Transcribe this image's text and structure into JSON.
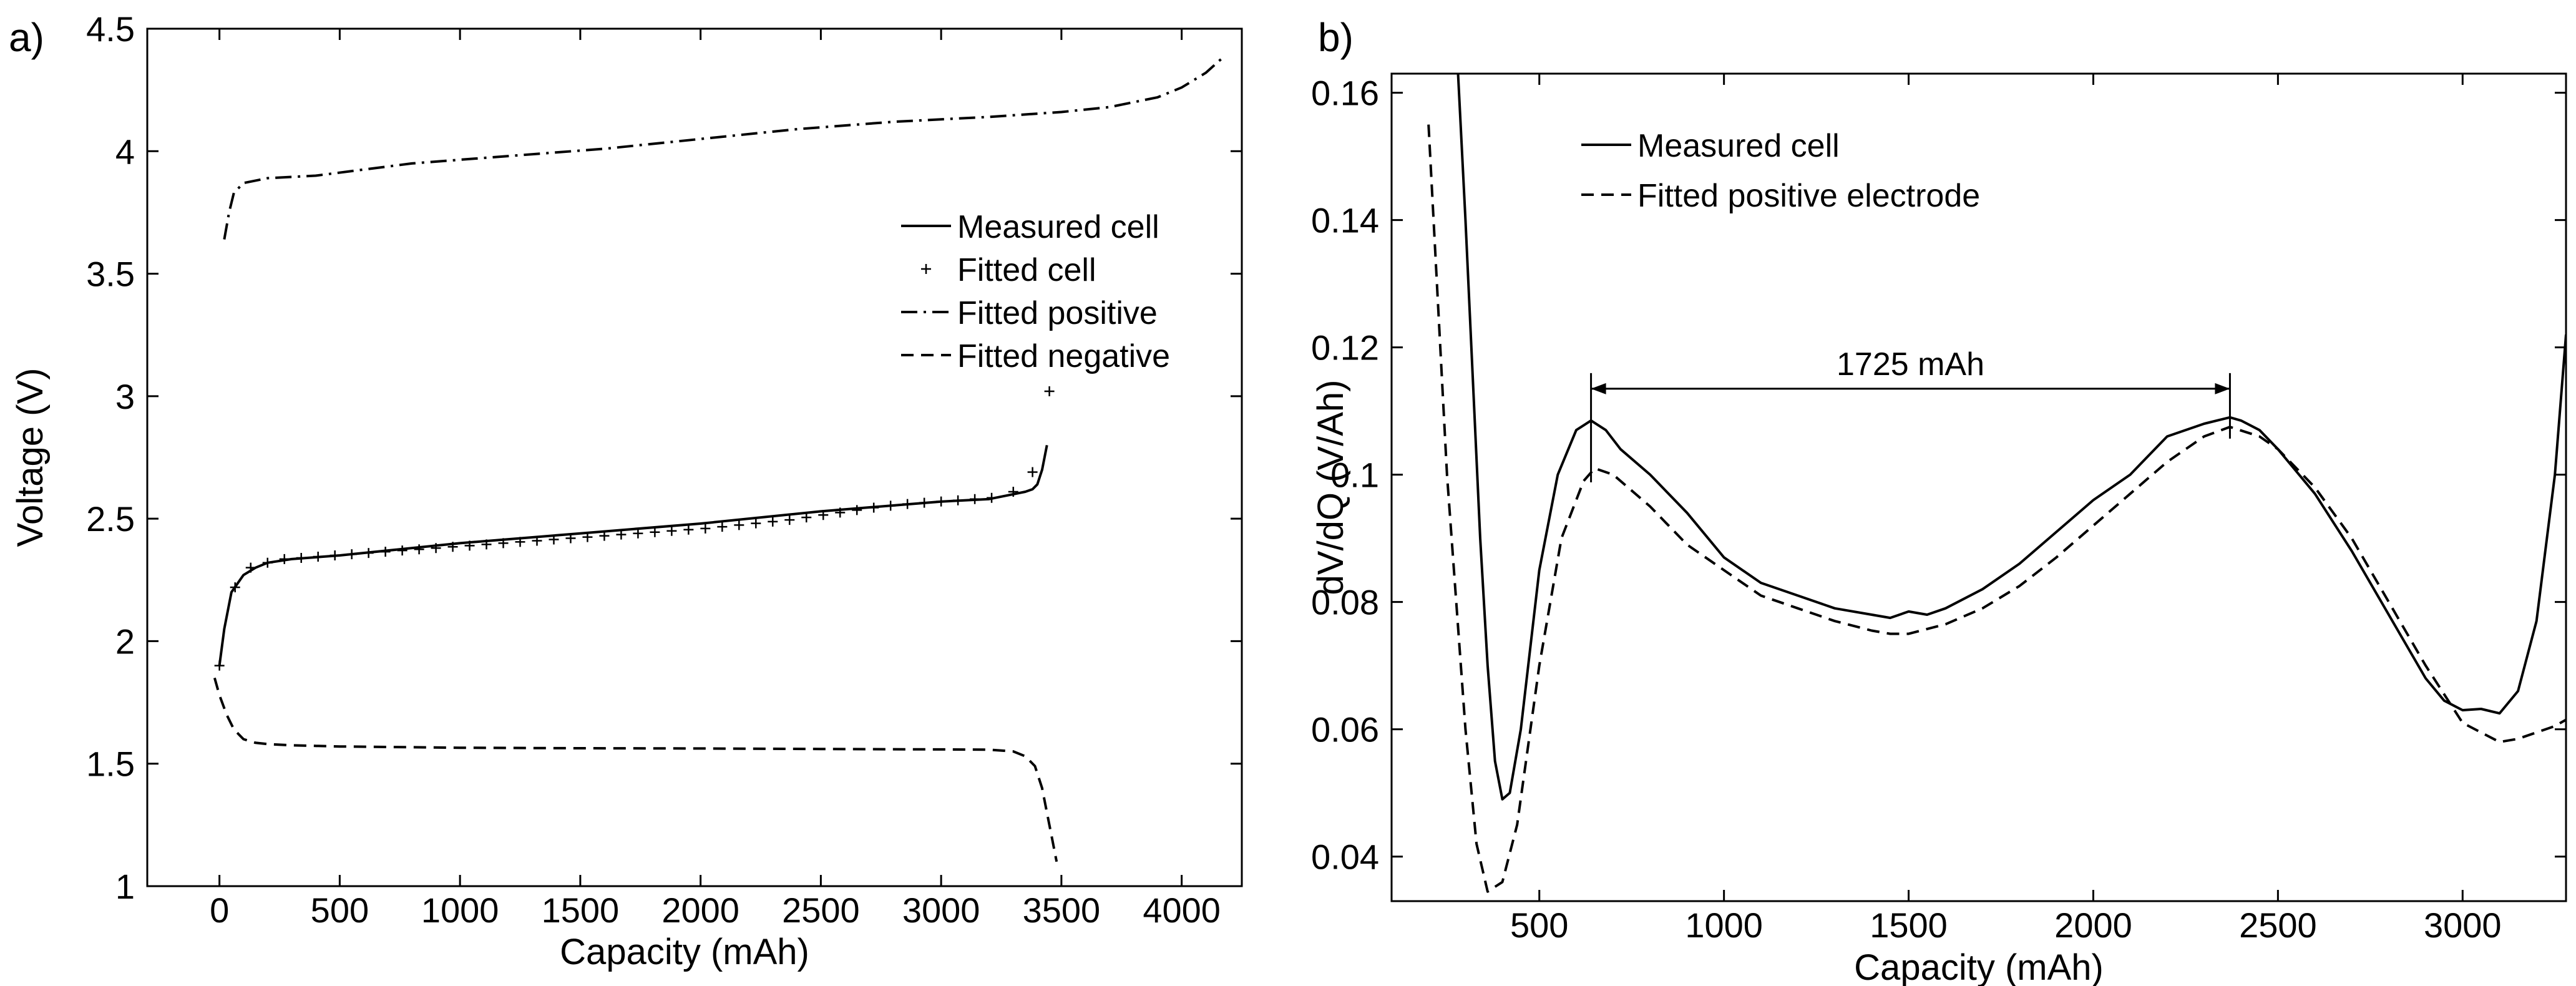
{
  "chart_data": [
    {
      "panel_label": "a)",
      "type": "line",
      "xlabel": "Capacity (mAh)",
      "ylabel": "Voltage (V)",
      "xlim": [
        -300,
        4250
      ],
      "ylim": [
        1,
        4.5
      ],
      "xticks": [
        0,
        500,
        1000,
        1500,
        2000,
        2500,
        3000,
        3500,
        4000
      ],
      "yticks": [
        1,
        1.5,
        2,
        2.5,
        3,
        3.5,
        4,
        4.5
      ],
      "xtick_labels": [
        "0",
        "500",
        "1000",
        "1500",
        "2000",
        "2500",
        "3000",
        "3500",
        "4000"
      ],
      "ytick_labels": [
        "1",
        "1.5",
        "2",
        "2.5",
        "3",
        "3.5",
        "4",
        "4.5"
      ],
      "grid": false,
      "legend_position": "right",
      "series": [
        {
          "name": "Measured cell",
          "style": "solid",
          "x": [
            0,
            20,
            50,
            100,
            150,
            200,
            300,
            500,
            1000,
            1500,
            2000,
            2500,
            3000,
            3200,
            3300,
            3350,
            3380,
            3400,
            3420,
            3440
          ],
          "y": [
            1.9,
            2.05,
            2.2,
            2.27,
            2.3,
            2.32,
            2.335,
            2.35,
            2.4,
            2.44,
            2.48,
            2.53,
            2.57,
            2.58,
            2.6,
            2.61,
            2.62,
            2.64,
            2.7,
            2.8
          ]
        },
        {
          "name": "Fitted cell",
          "style": "plus",
          "x": [
            0,
            65,
            130,
            200,
            270,
            340,
            410,
            480,
            550,
            620,
            690,
            760,
            830,
            900,
            970,
            1040,
            1110,
            1180,
            1250,
            1320,
            1390,
            1460,
            1530,
            1600,
            1670,
            1740,
            1810,
            1880,
            1950,
            2020,
            2090,
            2160,
            2230,
            2300,
            2370,
            2440,
            2510,
            2580,
            2650,
            2720,
            2790,
            2860,
            2930,
            3000,
            3070,
            3140,
            3210,
            3300,
            3380,
            3450
          ],
          "y": [
            1.9,
            2.22,
            2.3,
            2.32,
            2.335,
            2.34,
            2.345,
            2.35,
            2.355,
            2.36,
            2.365,
            2.37,
            2.375,
            2.38,
            2.385,
            2.39,
            2.395,
            2.4,
            2.405,
            2.41,
            2.415,
            2.42,
            2.425,
            2.43,
            2.435,
            2.44,
            2.445,
            2.45,
            2.455,
            2.46,
            2.467,
            2.474,
            2.481,
            2.488,
            2.495,
            2.505,
            2.515,
            2.525,
            2.535,
            2.545,
            2.553,
            2.56,
            2.565,
            2.57,
            2.575,
            2.58,
            2.585,
            2.61,
            2.69,
            3.02
          ]
        },
        {
          "name": "Fitted positive",
          "style": "dashdot",
          "x": [
            20,
            40,
            60,
            100,
            200,
            400,
            800,
            1200,
            1600,
            2000,
            2400,
            2800,
            3200,
            3500,
            3700,
            3900,
            4000,
            4100,
            4180
          ],
          "y": [
            3.64,
            3.75,
            3.83,
            3.87,
            3.89,
            3.9,
            3.95,
            3.98,
            4.01,
            4.05,
            4.09,
            4.12,
            4.14,
            4.16,
            4.18,
            4.22,
            4.26,
            4.32,
            4.39
          ]
        },
        {
          "name": "Fitted negative",
          "style": "dashed",
          "x": [
            -20,
            0,
            30,
            60,
            100,
            150,
            200,
            300,
            500,
            1000,
            1500,
            2000,
            2500,
            3000,
            3200,
            3300,
            3350,
            3390,
            3420,
            3440,
            3460,
            3480
          ],
          "y": [
            1.85,
            1.78,
            1.7,
            1.64,
            1.6,
            1.585,
            1.58,
            1.575,
            1.57,
            1.565,
            1.563,
            1.562,
            1.56,
            1.558,
            1.557,
            1.55,
            1.53,
            1.49,
            1.4,
            1.3,
            1.2,
            1.1
          ]
        }
      ]
    },
    {
      "panel_label": "b)",
      "type": "line",
      "xlabel": "Capacity (mAh)",
      "ylabel": "dV/dQ (V/Ah)",
      "xlim": [
        100,
        3280
      ],
      "ylim": [
        0.033,
        0.163
      ],
      "xticks": [
        500,
        1000,
        1500,
        2000,
        2500,
        3000
      ],
      "yticks": [
        0.04,
        0.06,
        0.08,
        0.1,
        0.12,
        0.14,
        0.16
      ],
      "xtick_labels": [
        "500",
        "1000",
        "1500",
        "2000",
        "2500",
        "3000"
      ],
      "ytick_labels": [
        "0.04",
        "0.06",
        "0.08",
        "0.1",
        "0.12",
        "0.14",
        "0.16"
      ],
      "grid": false,
      "legend_position": "top-left",
      "annotation": {
        "text": "1725 mAh",
        "x_start": 640,
        "x_end": 2370,
        "y": 0.1135
      },
      "series": [
        {
          "name": "Measured cell",
          "style": "solid",
          "x": [
            280,
            300,
            320,
            340,
            360,
            380,
            400,
            420,
            450,
            500,
            550,
            600,
            640,
            680,
            720,
            800,
            900,
            1000,
            1100,
            1200,
            1300,
            1400,
            1450,
            1500,
            1550,
            1600,
            1700,
            1800,
            1900,
            2000,
            2100,
            2200,
            2300,
            2370,
            2400,
            2450,
            2500,
            2600,
            2700,
            2800,
            2900,
            2950,
            3000,
            3050,
            3100,
            3150,
            3200,
            3250,
            3280
          ],
          "y": [
            0.163,
            0.14,
            0.115,
            0.09,
            0.07,
            0.055,
            0.049,
            0.05,
            0.06,
            0.085,
            0.1,
            0.107,
            0.1085,
            0.107,
            0.104,
            0.1,
            0.094,
            0.087,
            0.083,
            0.081,
            0.079,
            0.078,
            0.0775,
            0.0785,
            0.078,
            0.079,
            0.082,
            0.086,
            0.091,
            0.096,
            0.1,
            0.106,
            0.108,
            0.109,
            0.1085,
            0.107,
            0.104,
            0.097,
            0.088,
            0.078,
            0.068,
            0.0645,
            0.063,
            0.0632,
            0.0625,
            0.066,
            0.077,
            0.1,
            0.122
          ]
        },
        {
          "name": "Fitted positive electrode",
          "style": "dashed",
          "x": [
            200,
            250,
            300,
            330,
            360,
            400,
            440,
            500,
            560,
            620,
            650,
            700,
            800,
            900,
            1000,
            1100,
            1200,
            1300,
            1400,
            1450,
            1500,
            1600,
            1700,
            1800,
            1900,
            2000,
            2100,
            2200,
            2300,
            2370,
            2450,
            2500,
            2600,
            2700,
            2800,
            2900,
            3000,
            3050,
            3100,
            3150,
            3200,
            3250,
            3280
          ],
          "y": [
            0.155,
            0.1,
            0.06,
            0.042,
            0.0345,
            0.036,
            0.045,
            0.07,
            0.09,
            0.099,
            0.101,
            0.1,
            0.095,
            0.089,
            0.085,
            0.081,
            0.079,
            0.077,
            0.0755,
            0.075,
            0.075,
            0.0765,
            0.079,
            0.0825,
            0.087,
            0.092,
            0.097,
            0.102,
            0.106,
            0.1075,
            0.106,
            0.104,
            0.098,
            0.09,
            0.08,
            0.07,
            0.061,
            0.0595,
            0.058,
            0.0585,
            0.0595,
            0.0605,
            0.0615
          ]
        }
      ]
    }
  ]
}
